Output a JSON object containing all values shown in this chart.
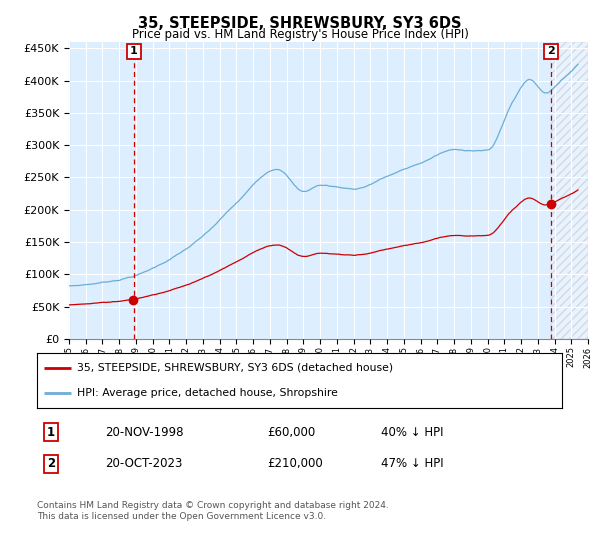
{
  "title": "35, STEEPSIDE, SHREWSBURY, SY3 6DS",
  "subtitle": "Price paid vs. HM Land Registry's House Price Index (HPI)",
  "sale1_date": "20-NOV-1998",
  "sale1_price": 60000,
  "sale1_pct": "40% ↓ HPI",
  "sale2_date": "20-OCT-2023",
  "sale2_price": 210000,
  "sale2_pct": "47% ↓ HPI",
  "legend_line1": "35, STEEPSIDE, SHREWSBURY, SY3 6DS (detached house)",
  "legend_line2": "HPI: Average price, detached house, Shropshire",
  "footer": "Contains HM Land Registry data © Crown copyright and database right 2024.\nThis data is licensed under the Open Government Licence v3.0.",
  "hpi_color": "#6baed6",
  "price_color": "#cc0000",
  "bg_color": "#ddeeff",
  "grid_color": "#cccccc",
  "marker_color": "#cc0000",
  "ylim": [
    0,
    460000
  ],
  "sale1_x_year": 1998.88,
  "sale2_x_year": 2023.79,
  "xmin": 1995,
  "xmax": 2026
}
